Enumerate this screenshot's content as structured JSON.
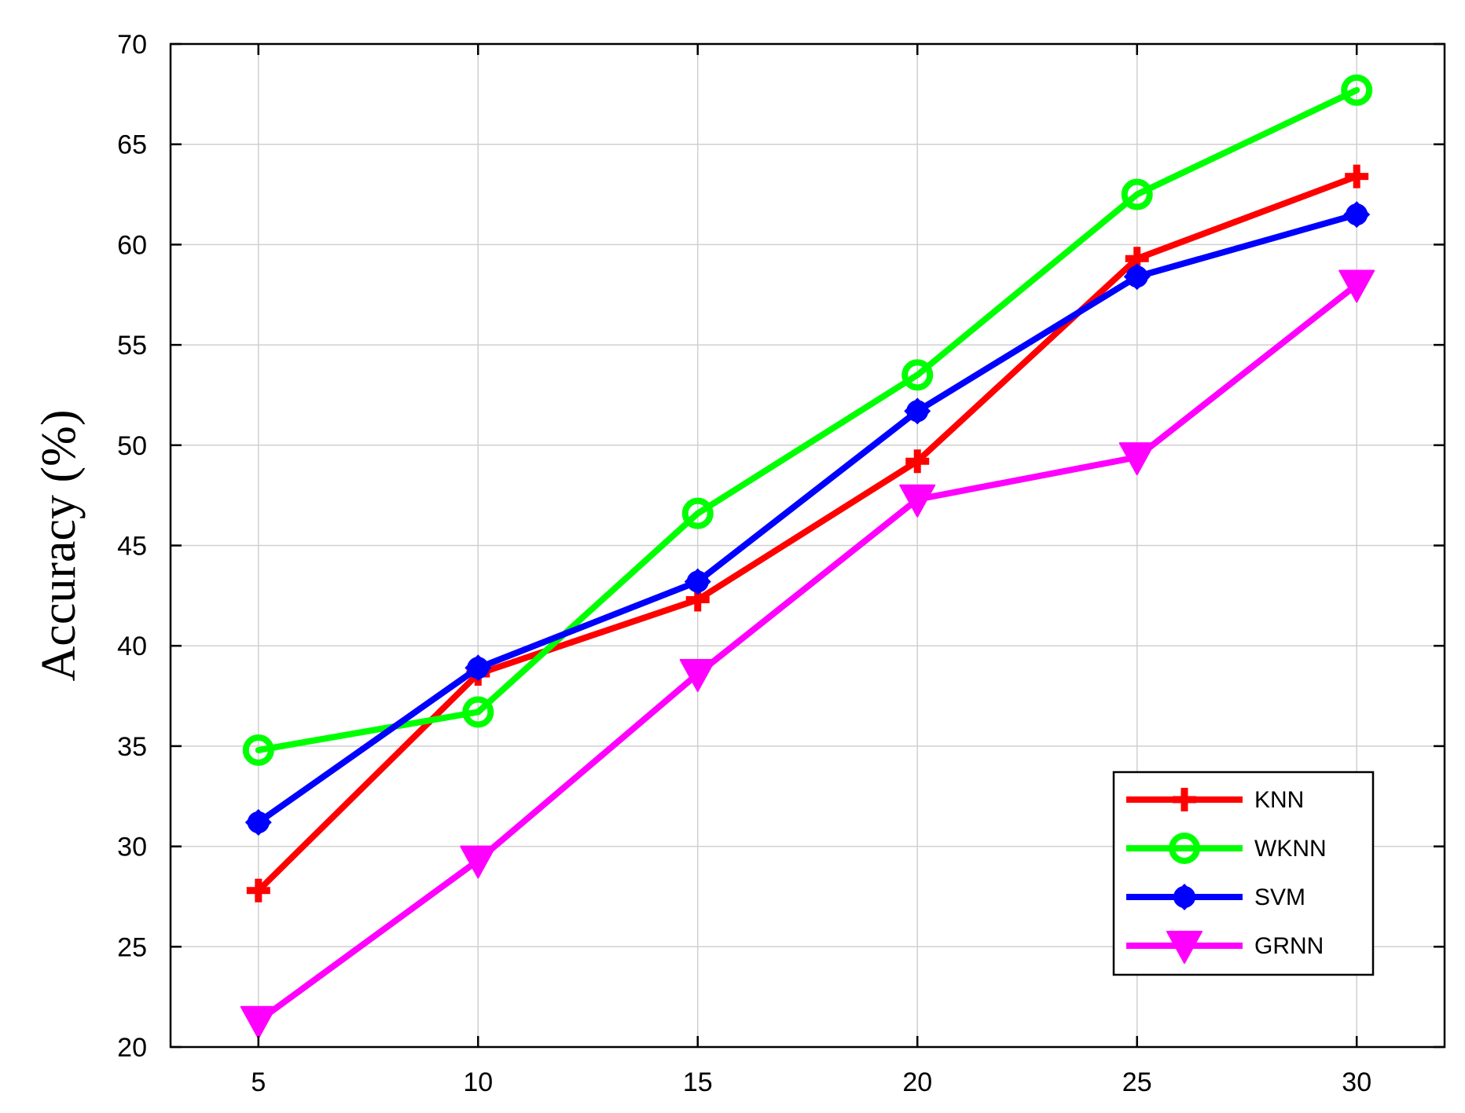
{
  "chart_data": {
    "type": "line",
    "title": "",
    "xlabel": "",
    "ylabel": "Accuracy (%)",
    "x": [
      5,
      10,
      15,
      20,
      25,
      30
    ],
    "xlim": [
      3,
      32
    ],
    "ylim": [
      20,
      70
    ],
    "xticks": [
      "5",
      "10",
      "15",
      "20",
      "25",
      "30"
    ],
    "yticks": [
      "20",
      "25",
      "30",
      "35",
      "40",
      "45",
      "50",
      "55",
      "60",
      "65",
      "70"
    ],
    "grid": true,
    "legend_position": "lower-right",
    "series": [
      {
        "name": "KNN",
        "values": [
          27.8,
          38.6,
          42.3,
          49.2,
          59.3,
          63.4
        ],
        "color": "#ff0000",
        "marker": "plus"
      },
      {
        "name": "WKNN",
        "values": [
          34.8,
          36.7,
          46.6,
          53.5,
          62.5,
          67.7
        ],
        "color": "#00ff00",
        "marker": "circle"
      },
      {
        "name": "SVM",
        "values": [
          31.2,
          38.9,
          43.2,
          51.7,
          58.4,
          61.5
        ],
        "color": "#0000ff",
        "marker": "diamond"
      },
      {
        "name": "GRNN",
        "values": [
          21.3,
          29.3,
          38.6,
          47.3,
          49.4,
          58.0
        ],
        "color": "#ff00ff",
        "marker": "triangle-down"
      }
    ]
  }
}
